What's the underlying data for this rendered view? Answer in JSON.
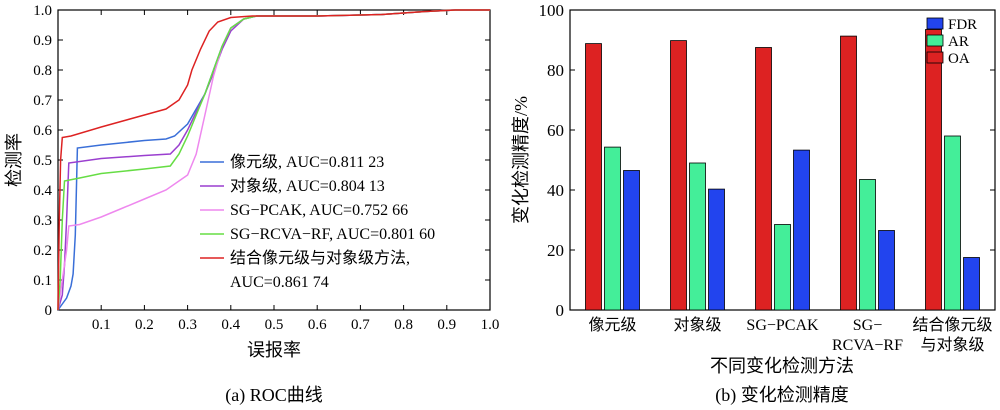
{
  "chart_data": [
    {
      "type": "line",
      "caption": "(a) ROC曲线",
      "xlabel": "误报率",
      "ylabel": "检测率",
      "xlim": [
        0,
        1.0
      ],
      "ylim": [
        0,
        1.0
      ],
      "xticks": [
        "0.1",
        "0.2",
        "0.3",
        "0.4",
        "0.5",
        "0.6",
        "0.7",
        "0.8",
        "0.9",
        "1.0"
      ],
      "yticks": [
        "0",
        "0.1",
        "0.2",
        "0.3",
        "0.4",
        "0.5",
        "0.6",
        "0.7",
        "0.8",
        "0.9",
        "1.0"
      ],
      "legend_position": "bottom-right",
      "series": [
        {
          "name": "像元级, AUC=0.811 23",
          "color": "#3a6fd8",
          "points": [
            [
              0,
              0
            ],
            [
              0.01,
              0.02
            ],
            [
              0.02,
              0.04
            ],
            [
              0.03,
              0.08
            ],
            [
              0.035,
              0.12
            ],
            [
              0.04,
              0.25
            ],
            [
              0.045,
              0.54
            ],
            [
              0.1,
              0.55
            ],
            [
              0.2,
              0.565
            ],
            [
              0.25,
              0.57
            ],
            [
              0.27,
              0.58
            ],
            [
              0.3,
              0.62
            ],
            [
              0.32,
              0.67
            ],
            [
              0.34,
              0.72
            ],
            [
              0.36,
              0.8
            ],
            [
              0.38,
              0.88
            ],
            [
              0.4,
              0.94
            ],
            [
              0.43,
              0.97
            ],
            [
              0.46,
              0.98
            ],
            [
              0.6,
              0.98
            ],
            [
              0.75,
              0.985
            ],
            [
              0.85,
              0.995
            ],
            [
              0.92,
              1.0
            ],
            [
              1.0,
              1.0
            ]
          ]
        },
        {
          "name": "对象级, AUC=0.804 13",
          "color": "#9a3fcf",
          "points": [
            [
              0,
              0
            ],
            [
              0.01,
              0.05
            ],
            [
              0.015,
              0.15
            ],
            [
              0.02,
              0.3
            ],
            [
              0.025,
              0.49
            ],
            [
              0.1,
              0.505
            ],
            [
              0.2,
              0.515
            ],
            [
              0.26,
              0.52
            ],
            [
              0.28,
              0.55
            ],
            [
              0.3,
              0.6
            ],
            [
              0.32,
              0.66
            ],
            [
              0.34,
              0.72
            ],
            [
              0.36,
              0.79
            ],
            [
              0.38,
              0.87
            ],
            [
              0.4,
              0.93
            ],
            [
              0.43,
              0.97
            ],
            [
              0.46,
              0.98
            ],
            [
              0.6,
              0.98
            ],
            [
              0.75,
              0.985
            ],
            [
              0.85,
              0.995
            ],
            [
              0.92,
              1.0
            ],
            [
              1.0,
              1.0
            ]
          ]
        },
        {
          "name": "SG−PCAK, AUC=0.752 66",
          "color": "#ee88ee",
          "points": [
            [
              0,
              0
            ],
            [
              0.01,
              0.1
            ],
            [
              0.02,
              0.2
            ],
            [
              0.025,
              0.28
            ],
            [
              0.05,
              0.285
            ],
            [
              0.1,
              0.31
            ],
            [
              0.15,
              0.34
            ],
            [
              0.2,
              0.37
            ],
            [
              0.25,
              0.4
            ],
            [
              0.3,
              0.45
            ],
            [
              0.32,
              0.52
            ],
            [
              0.34,
              0.65
            ],
            [
              0.36,
              0.78
            ],
            [
              0.38,
              0.88
            ],
            [
              0.4,
              0.94
            ],
            [
              0.43,
              0.97
            ],
            [
              0.46,
              0.98
            ],
            [
              0.6,
              0.98
            ],
            [
              0.75,
              0.985
            ],
            [
              0.85,
              0.995
            ],
            [
              0.92,
              1.0
            ],
            [
              1.0,
              1.0
            ]
          ]
        },
        {
          "name": "SG−RCVA−RF, AUC=0.801 60",
          "color": "#66dd44",
          "points": [
            [
              0,
              0
            ],
            [
              0.005,
              0.1
            ],
            [
              0.01,
              0.3
            ],
            [
              0.015,
              0.43
            ],
            [
              0.05,
              0.44
            ],
            [
              0.1,
              0.455
            ],
            [
              0.2,
              0.47
            ],
            [
              0.26,
              0.48
            ],
            [
              0.28,
              0.52
            ],
            [
              0.3,
              0.58
            ],
            [
              0.32,
              0.65
            ],
            [
              0.34,
              0.72
            ],
            [
              0.36,
              0.8
            ],
            [
              0.38,
              0.88
            ],
            [
              0.4,
              0.94
            ],
            [
              0.43,
              0.97
            ],
            [
              0.46,
              0.98
            ],
            [
              0.6,
              0.98
            ],
            [
              0.75,
              0.985
            ],
            [
              0.85,
              0.995
            ],
            [
              0.92,
              1.0
            ],
            [
              1.0,
              1.0
            ]
          ]
        },
        {
          "name": "结合像元级与对象级方法,|AUC=0.861 74",
          "color": "#dd2222",
          "points": [
            [
              0,
              0
            ],
            [
              0.003,
              0.3
            ],
            [
              0.006,
              0.5
            ],
            [
              0.01,
              0.575
            ],
            [
              0.03,
              0.58
            ],
            [
              0.1,
              0.61
            ],
            [
              0.15,
              0.63
            ],
            [
              0.2,
              0.65
            ],
            [
              0.25,
              0.67
            ],
            [
              0.28,
              0.7
            ],
            [
              0.3,
              0.75
            ],
            [
              0.31,
              0.8
            ],
            [
              0.33,
              0.87
            ],
            [
              0.35,
              0.93
            ],
            [
              0.37,
              0.96
            ],
            [
              0.4,
              0.975
            ],
            [
              0.45,
              0.98
            ],
            [
              0.6,
              0.98
            ],
            [
              0.75,
              0.985
            ],
            [
              0.85,
              0.995
            ],
            [
              0.92,
              1.0
            ],
            [
              1.0,
              1.0
            ]
          ]
        }
      ]
    },
    {
      "type": "bar",
      "caption": "(b) 变化检测精度",
      "xlabel": "不同变化检测方法",
      "ylabel": "变化检测精度/%",
      "ylim": [
        0,
        100
      ],
      "yticks": [
        "0",
        "20",
        "40",
        "60",
        "80",
        "100"
      ],
      "legend_position": "top-right",
      "categories": [
        "像元级",
        "对象级",
        "SG−PCAK",
        "SG−|RCVA−RF",
        "结合像元级|与对象级"
      ],
      "series": [
        {
          "name": "OA",
          "color": "#dd2222",
          "values": [
            88.8,
            89.8,
            87.5,
            91.3,
            93.5
          ]
        },
        {
          "name": "AR",
          "color": "#44ee99",
          "values": [
            54.3,
            49.0,
            28.5,
            43.5,
            58.0
          ]
        },
        {
          "name": "FDR",
          "color": "#2244ee",
          "values": [
            46.5,
            40.3,
            53.3,
            26.5,
            17.5
          ]
        }
      ],
      "legend_order": [
        "FDR",
        "AR",
        "OA"
      ]
    }
  ]
}
